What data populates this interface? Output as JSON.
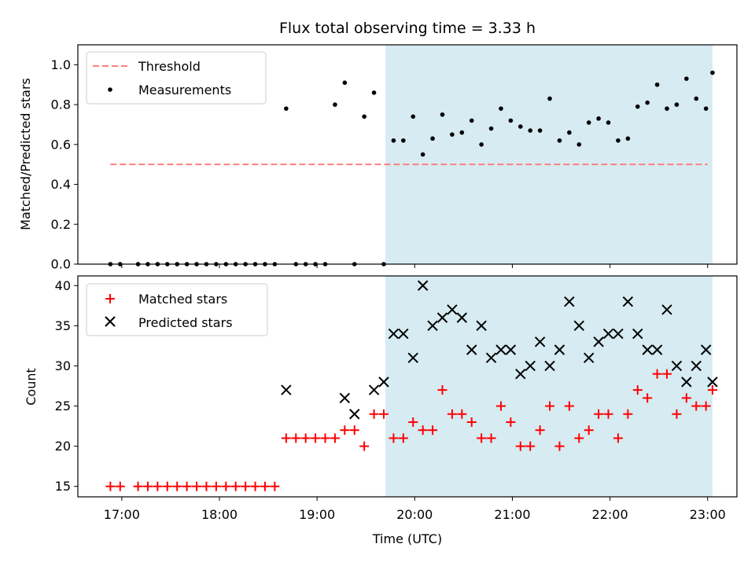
{
  "chart_data": [
    {
      "type": "scatter",
      "title": "Flux total observing time = 3.33 h",
      "xlabel": "",
      "ylabel": "Matched/Predicted stars",
      "xlim": [
        "16:33",
        "23:18"
      ],
      "ylim": [
        0,
        1.1
      ],
      "yticks": [
        "0.0",
        "0.2",
        "0.4",
        "0.6",
        "0.8",
        "1.0"
      ],
      "grid": false,
      "legend": "upper left",
      "shaded_region": {
        "from": "19:42",
        "to": "23:03",
        "color": "#add8e6"
      },
      "threshold": {
        "name": "Threshold",
        "value": 0.5,
        "from": "16:53",
        "to": "23:00",
        "color": "#ff7f7f"
      },
      "series": [
        {
          "name": "Measurements",
          "color": "#000000",
          "x": [
            "16:53",
            "16:59",
            "17:10",
            "17:16",
            "17:22",
            "17:28",
            "17:34",
            "17:40",
            "17:46",
            "17:52",
            "17:58",
            "18:04",
            "18:10",
            "18:16",
            "18:22",
            "18:28",
            "18:34",
            "18:41",
            "18:47",
            "18:53",
            "18:59",
            "19:05",
            "19:11",
            "19:17",
            "19:23",
            "19:29",
            "19:35",
            "19:41",
            "19:47",
            "19:53",
            "19:59",
            "20:05",
            "20:11",
            "20:17",
            "20:23",
            "20:29",
            "20:35",
            "20:41",
            "20:47",
            "20:53",
            "20:59",
            "21:05",
            "21:11",
            "21:17",
            "21:23",
            "21:29",
            "21:35",
            "21:41",
            "21:47",
            "21:53",
            "21:59",
            "22:05",
            "22:11",
            "22:17",
            "22:23",
            "22:29",
            "22:35",
            "22:41",
            "22:47",
            "22:53",
            "22:59",
            "23:03"
          ],
          "y": [
            0,
            0,
            0,
            0,
            0,
            0,
            0,
            0,
            0,
            0,
            0,
            0,
            0,
            0,
            0,
            0,
            0,
            0.78,
            0,
            0,
            0,
            0,
            0.8,
            0.91,
            0,
            0.74,
            0.86,
            0,
            0.62,
            0.62,
            0.74,
            0.55,
            0.63,
            0.75,
            0.65,
            0.66,
            0.72,
            0.6,
            0.68,
            0.78,
            0.72,
            0.69,
            0.67,
            0.67,
            0.83,
            0.62,
            0.66,
            0.6,
            0.71,
            0.73,
            0.71,
            0.62,
            0.63,
            0.79,
            0.81,
            0.9,
            0.78,
            0.8,
            0.93,
            0.83,
            0.78,
            0.96
          ]
        }
      ]
    },
    {
      "type": "scatter",
      "title": "",
      "xlabel": "Time (UTC)",
      "ylabel": "Count",
      "xticks": [
        "17:00",
        "18:00",
        "19:00",
        "20:00",
        "21:00",
        "22:00",
        "23:00"
      ],
      "xlim": [
        "16:33",
        "23:18"
      ],
      "ylim": [
        13.7,
        41.2
      ],
      "yticks": [
        "15",
        "20",
        "25",
        "30",
        "35",
        "40"
      ],
      "grid": false,
      "legend": "upper left",
      "shaded_region": {
        "from": "19:42",
        "to": "23:03",
        "color": "#add8e6"
      },
      "series": [
        {
          "name": "Matched stars",
          "marker": "plus",
          "color": "#ff0000",
          "x": [
            "16:53",
            "16:59",
            "17:10",
            "17:16",
            "17:22",
            "17:28",
            "17:34",
            "17:40",
            "17:46",
            "17:52",
            "17:58",
            "18:04",
            "18:10",
            "18:16",
            "18:22",
            "18:28",
            "18:34",
            "18:41",
            "18:47",
            "18:53",
            "18:59",
            "19:05",
            "19:11",
            "19:17",
            "19:23",
            "19:29",
            "19:35",
            "19:41",
            "19:47",
            "19:53",
            "19:59",
            "20:05",
            "20:11",
            "20:17",
            "20:23",
            "20:29",
            "20:35",
            "20:41",
            "20:47",
            "20:53",
            "20:59",
            "21:05",
            "21:11",
            "21:17",
            "21:23",
            "21:29",
            "21:35",
            "21:41",
            "21:47",
            "21:53",
            "21:59",
            "22:05",
            "22:11",
            "22:17",
            "22:23",
            "22:29",
            "22:35",
            "22:41",
            "22:47",
            "22:53",
            "22:59",
            "23:03"
          ],
          "y": [
            15,
            15,
            15,
            15,
            15,
            15,
            15,
            15,
            15,
            15,
            15,
            15,
            15,
            15,
            15,
            15,
            15,
            21,
            21,
            21,
            21,
            21,
            21,
            22,
            22,
            20,
            24,
            24,
            21,
            21,
            23,
            22,
            22,
            27,
            24,
            24,
            23,
            21,
            21,
            25,
            23,
            20,
            20,
            22,
            25,
            20,
            25,
            21,
            22,
            24,
            24,
            21,
            24,
            27,
            26,
            29,
            29,
            24,
            26,
            25,
            25,
            27
          ]
        },
        {
          "name": "Predicted stars",
          "marker": "x",
          "color": "#000000",
          "x": [
            "18:41",
            "19:17",
            "19:23",
            "19:35",
            "19:41",
            "19:47",
            "19:53",
            "19:59",
            "20:05",
            "20:11",
            "20:17",
            "20:23",
            "20:29",
            "20:35",
            "20:41",
            "20:47",
            "20:53",
            "20:59",
            "21:05",
            "21:11",
            "21:17",
            "21:23",
            "21:29",
            "21:35",
            "21:41",
            "21:47",
            "21:53",
            "21:59",
            "22:05",
            "22:11",
            "22:17",
            "22:23",
            "22:29",
            "22:35",
            "22:41",
            "22:47",
            "22:53",
            "22:59",
            "23:03"
          ],
          "y": [
            27,
            26,
            24,
            27,
            28,
            34,
            34,
            31,
            40,
            35,
            36,
            37,
            36,
            32,
            35,
            31,
            32,
            32,
            29,
            30,
            33,
            30,
            32,
            38,
            35,
            31,
            33,
            34,
            34,
            38,
            34,
            32,
            32,
            37,
            30,
            28,
            30,
            32,
            28
          ]
        }
      ]
    }
  ]
}
